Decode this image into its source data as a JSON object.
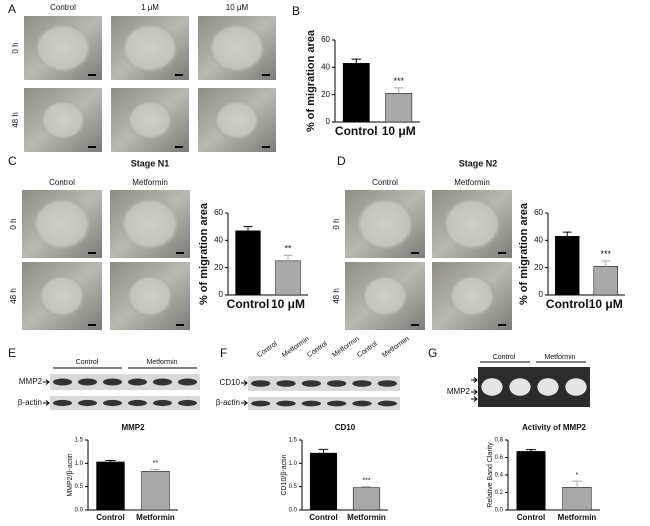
{
  "panels": {
    "A": {
      "letter": "A",
      "columns": [
        "Control",
        "1 μM",
        "10 μM"
      ],
      "rows": [
        "0 h",
        "48 h"
      ]
    },
    "B": {
      "letter": "B"
    },
    "C": {
      "letter": "C",
      "title": "Stage N1",
      "columns": [
        "Control",
        "Metformin"
      ],
      "rows": [
        "0 h",
        "48 h"
      ]
    },
    "D": {
      "letter": "D",
      "title": "Stage N2",
      "columns": [
        "Control",
        "Metformin"
      ],
      "rows": [
        "0 h",
        "48 h"
      ]
    },
    "E": {
      "letter": "E",
      "groups": [
        "Control",
        "Metformin"
      ],
      "bands": [
        "MMP2",
        "β-actin"
      ]
    },
    "F": {
      "letter": "F",
      "lanes": [
        "Control",
        "Metformin",
        "Control",
        "Metformin",
        "Control",
        "Metformin"
      ],
      "bands": [
        "CD10",
        "β-actin"
      ]
    },
    "G": {
      "letter": "G",
      "groups": [
        "Control",
        "Metformin"
      ],
      "bands": [
        "MMP2"
      ]
    }
  },
  "chart_data": [
    {
      "type": "bar",
      "ylabel": "% of migration area",
      "categories": [
        "Control",
        "10 μM"
      ],
      "values": [
        43,
        21
      ],
      "errors": [
        3,
        4
      ],
      "significance": [
        null,
        "***"
      ],
      "colors": [
        "#000000",
        "#a9a9a9"
      ],
      "ylim": [
        0,
        60
      ],
      "yticks": [
        0,
        20,
        40,
        60
      ]
    },
    {
      "type": "bar",
      "ylabel": "% of migration area",
      "categories": [
        "Control",
        "10 μM"
      ],
      "values": [
        47,
        25
      ],
      "errors": [
        3,
        4
      ],
      "significance": [
        null,
        "**"
      ],
      "colors": [
        "#000000",
        "#a9a9a9"
      ],
      "ylim": [
        0,
        60
      ],
      "yticks": [
        0,
        20,
        40,
        60
      ]
    },
    {
      "type": "bar",
      "ylabel": "% of migration area",
      "categories": [
        "Control",
        "10 μM"
      ],
      "values": [
        43,
        21
      ],
      "errors": [
        3,
        4
      ],
      "significance": [
        null,
        "***"
      ],
      "colors": [
        "#000000",
        "#a9a9a9"
      ],
      "ylim": [
        0,
        60
      ],
      "yticks": [
        0,
        20,
        40,
        60
      ]
    },
    {
      "type": "bar",
      "title": "MMP2",
      "ylabel": "MMP2/β-actin",
      "categories": [
        "Control",
        "Metformin"
      ],
      "values": [
        1.03,
        0.83
      ],
      "errors": [
        0.03,
        0.04
      ],
      "significance": [
        null,
        "**"
      ],
      "colors": [
        "#000000",
        "#a9a9a9"
      ],
      "ylim": [
        0,
        1.5
      ],
      "yticks": [
        {
          "value": 0,
          "label": "0.0"
        },
        0.5,
        {
          "value": 1,
          "label": "1.0"
        },
        1.5
      ]
    },
    {
      "type": "bar",
      "title": "CD10",
      "ylabel": "CD10/β-actin",
      "categories": [
        "Control",
        "Metformin"
      ],
      "values": [
        1.22,
        0.48
      ],
      "errors": [
        0.08,
        0.02
      ],
      "significance": [
        null,
        "***"
      ],
      "colors": [
        "#000000",
        "#a9a9a9"
      ],
      "ylim": [
        0,
        1.5
      ],
      "yticks": [
        {
          "value": 0,
          "label": "0.0"
        },
        0.5,
        {
          "value": 1,
          "label": "1.0"
        },
        1.5
      ]
    },
    {
      "type": "bar",
      "title": "Activity of MMP2",
      "ylabel": "Relative Band Clarity",
      "categories": [
        "Control",
        "Metformin"
      ],
      "values": [
        0.67,
        0.26
      ],
      "errors": [
        0.02,
        0.07
      ],
      "significance": [
        null,
        "*"
      ],
      "colors": [
        "#000000",
        "#a9a9a9"
      ],
      "ylim": [
        0,
        0.8
      ],
      "yticks": [
        {
          "value": 0,
          "label": "0.0"
        },
        0.2,
        0.4,
        0.6,
        0.8
      ]
    }
  ]
}
